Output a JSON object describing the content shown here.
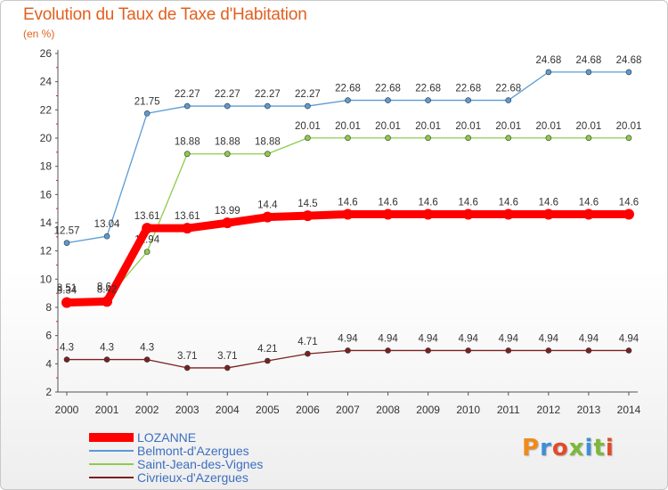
{
  "header": {
    "title": "Evolution du Taux de Taxe d'Habitation",
    "subtitle": "(en %)"
  },
  "logo": {
    "text": "Proxiti",
    "letters": [
      "P",
      "r",
      "o",
      "x",
      "i",
      "t",
      "i"
    ],
    "colors": [
      "#f08a1c",
      "#3d8fd6",
      "#e14b2b",
      "#7cb83a",
      "#3d8fd6",
      "#7cb83a",
      "#e14b2b"
    ]
  },
  "chart_data": {
    "type": "line",
    "title": "Evolution du Taux de Taxe d'Habitation",
    "ylabel": "(en %)",
    "xlabel": "",
    "x": [
      "2000",
      "2001",
      "2002",
      "2003",
      "2004",
      "2005",
      "2006",
      "2007",
      "2008",
      "2009",
      "2010",
      "2011",
      "2012",
      "2013",
      "2014"
    ],
    "ylim": [
      2,
      26
    ],
    "yticks": [
      "2",
      "4",
      "6",
      "8",
      "10",
      "12",
      "14",
      "16",
      "18",
      "20",
      "22",
      "24",
      "26"
    ],
    "grid": false,
    "legend_position": "bottom-left",
    "series": [
      {
        "name": "Belmont-d'Azergues",
        "color": "#5b9bd5",
        "values": [
          12.57,
          13.04,
          21.75,
          22.27,
          22.27,
          22.27,
          22.27,
          22.68,
          22.68,
          22.68,
          22.68,
          22.68,
          24.68,
          24.68,
          24.68
        ],
        "labels": [
          "12.57",
          "13.04",
          "21.75",
          "22.27",
          "22.27",
          "22.27",
          "22.27",
          "22.68",
          "22.68",
          "22.68",
          "22.68",
          "22.68",
          "24.68",
          "24.68",
          "24.68"
        ],
        "label_pos": "above"
      },
      {
        "name": "Saint-Jean-des-Vignes",
        "color": "#8fcc4a",
        "values": [
          8.51,
          8.61,
          11.94,
          18.88,
          18.88,
          18.88,
          20.01,
          20.01,
          20.01,
          20.01,
          20.01,
          20.01,
          20.01,
          20.01,
          20.01
        ],
        "labels": [
          "8.51",
          "8.61",
          "11.94",
          "18.88",
          "18.88",
          "18.88",
          "20.01",
          "20.01",
          "20.01",
          "20.01",
          "20.01",
          "20.01",
          "20.01",
          "20.01",
          "20.01"
        ],
        "label_pos": "above"
      },
      {
        "name": "LOZANNE",
        "color": "#ff0000",
        "values": [
          8.34,
          8.42,
          13.61,
          13.61,
          13.99,
          14.4,
          14.5,
          14.6,
          14.6,
          14.6,
          14.6,
          14.6,
          14.6,
          14.6,
          14.6
        ],
        "labels": [
          "8.34",
          "8.42",
          "13.61",
          "13.61",
          "13.99",
          "14.4",
          "14.5",
          "14.6",
          "14.6",
          "14.6",
          "14.6",
          "14.6",
          "14.6",
          "14.6",
          "14.6"
        ],
        "label_pos": "above",
        "bold": true
      },
      {
        "name": "Civrieux-d'Azergues",
        "color": "#7b2020",
        "values": [
          4.3,
          4.3,
          4.3,
          3.71,
          3.71,
          4.21,
          4.71,
          4.94,
          4.94,
          4.94,
          4.94,
          4.94,
          4.94,
          4.94,
          4.94
        ],
        "labels": [
          "4.3",
          "4.3",
          "4.3",
          "3.71",
          "3.71",
          "4.21",
          "4.71",
          "4.94",
          "4.94",
          "4.94",
          "4.94",
          "4.94",
          "4.94",
          "4.94",
          "4.94"
        ],
        "label_pos": "above"
      }
    ],
    "legend": [
      "LOZANNE",
      "Belmont-d'Azergues",
      "Saint-Jean-des-Vignes",
      "Civrieux-d'Azergues"
    ]
  }
}
